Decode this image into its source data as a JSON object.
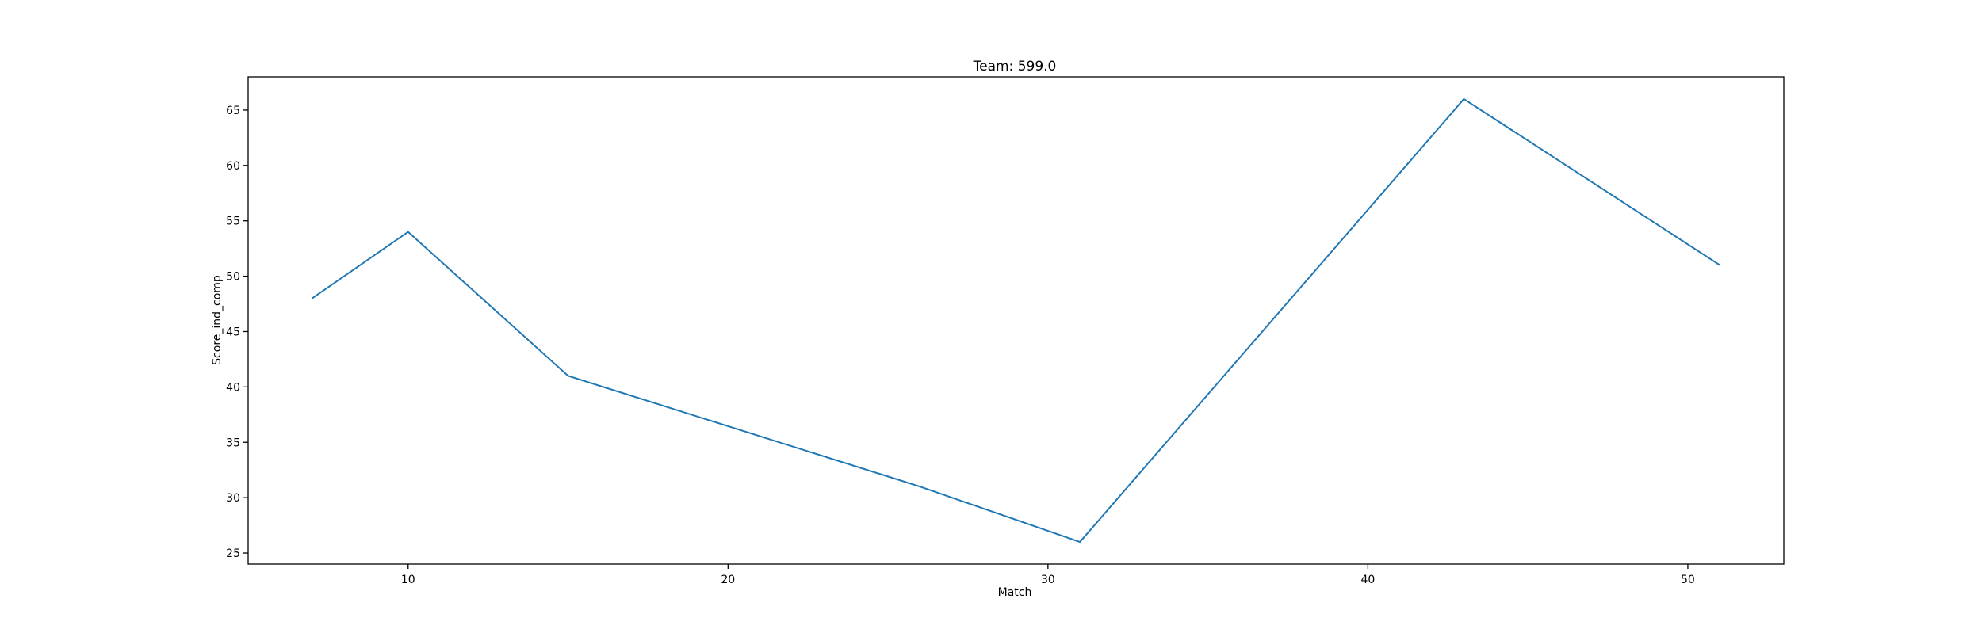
{
  "chart_data": {
    "type": "line",
    "title": "Team: 599.0",
    "xlabel": "Match",
    "ylabel": "Score_ind_comp",
    "xlim": [
      5,
      53
    ],
    "ylim": [
      24,
      68
    ],
    "xticks": [
      10,
      20,
      30,
      40,
      50
    ],
    "yticks": [
      25,
      30,
      35,
      40,
      45,
      50,
      55,
      60,
      65
    ],
    "grid": false,
    "series": [
      {
        "color": "#1f77b4",
        "x": [
          7,
          10,
          15,
          26,
          31,
          43,
          51
        ],
        "y": [
          48,
          54,
          41,
          31,
          26,
          66,
          51
        ]
      }
    ]
  }
}
